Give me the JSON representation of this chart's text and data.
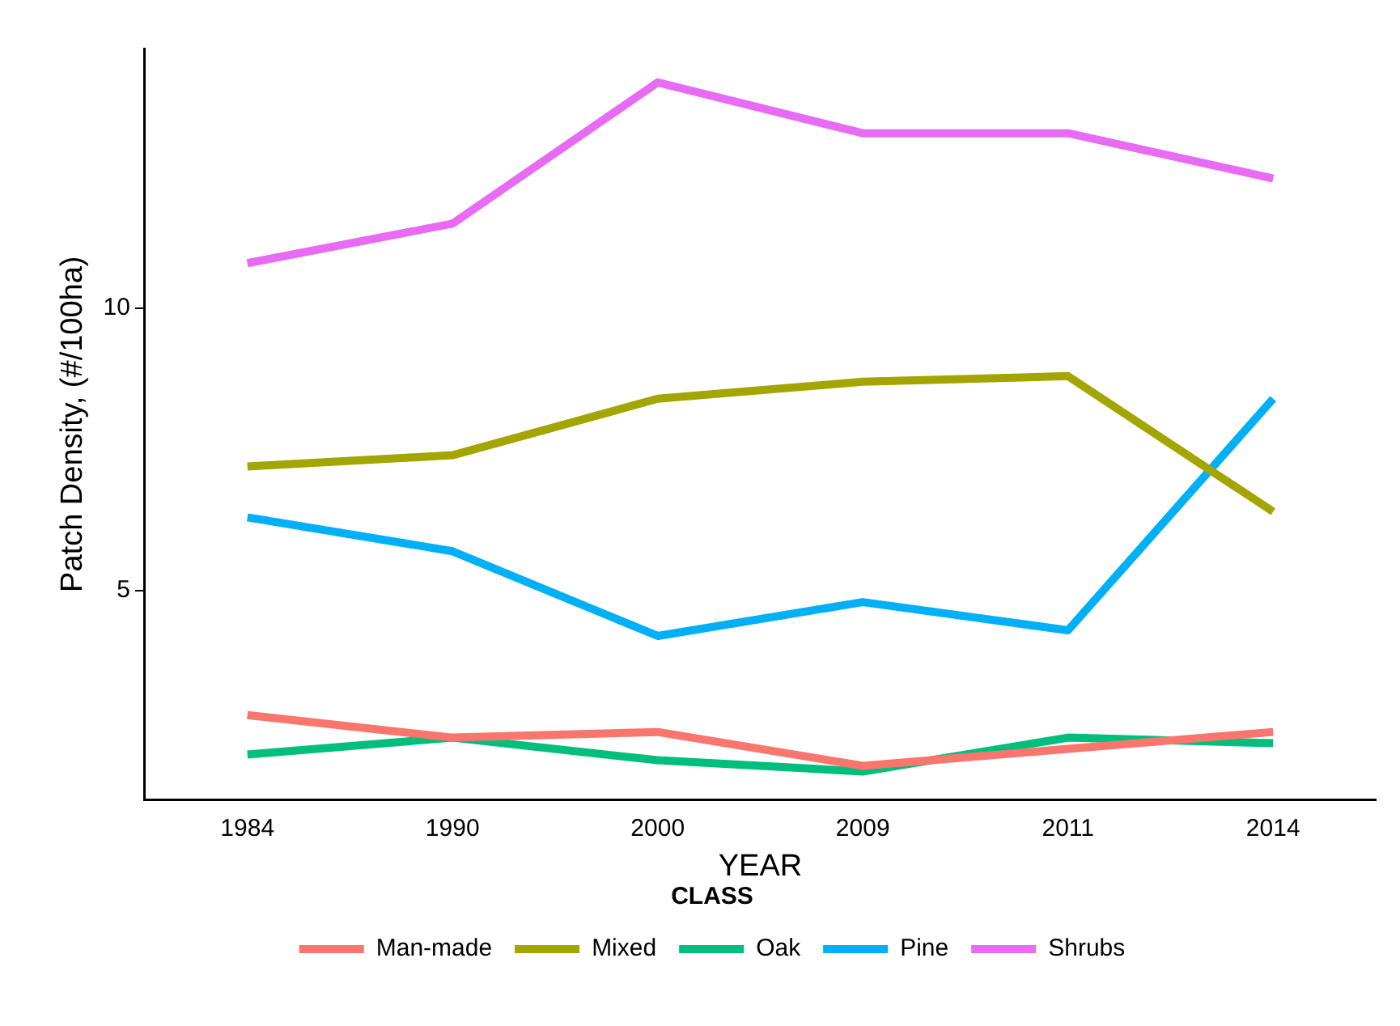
{
  "chart_data": {
    "type": "line",
    "xlabel": "YEAR",
    "ylabel": "Patch Density, (#/100ha)",
    "legend_title": "CLASS",
    "legend": "bottom",
    "grid": false,
    "marker": "none",
    "line_style": "solid",
    "categories": [
      "1984",
      "1990",
      "2000",
      "2009",
      "2011",
      "2014"
    ],
    "ylim": [
      1.3,
      14.6
    ],
    "yticks": [
      5,
      10
    ],
    "series": [
      {
        "name": "Man-made",
        "color": "#f8766d",
        "values": [
          2.8,
          2.4,
          2.5,
          1.9,
          2.2,
          2.5
        ]
      },
      {
        "name": "Mixed",
        "color": "#a3a500",
        "values": [
          7.2,
          7.4,
          8.4,
          8.7,
          8.8,
          6.4
        ]
      },
      {
        "name": "Oak",
        "color": "#00bf7d",
        "values": [
          2.1,
          2.4,
          2.0,
          1.8,
          2.4,
          2.3
        ]
      },
      {
        "name": "Pine",
        "color": "#00b0f6",
        "values": [
          6.3,
          5.7,
          4.2,
          4.8,
          4.3,
          8.4
        ]
      },
      {
        "name": "Shrubs",
        "color": "#e76bf3",
        "values": [
          10.8,
          11.5,
          14.0,
          13.1,
          13.1,
          12.3
        ]
      }
    ]
  }
}
